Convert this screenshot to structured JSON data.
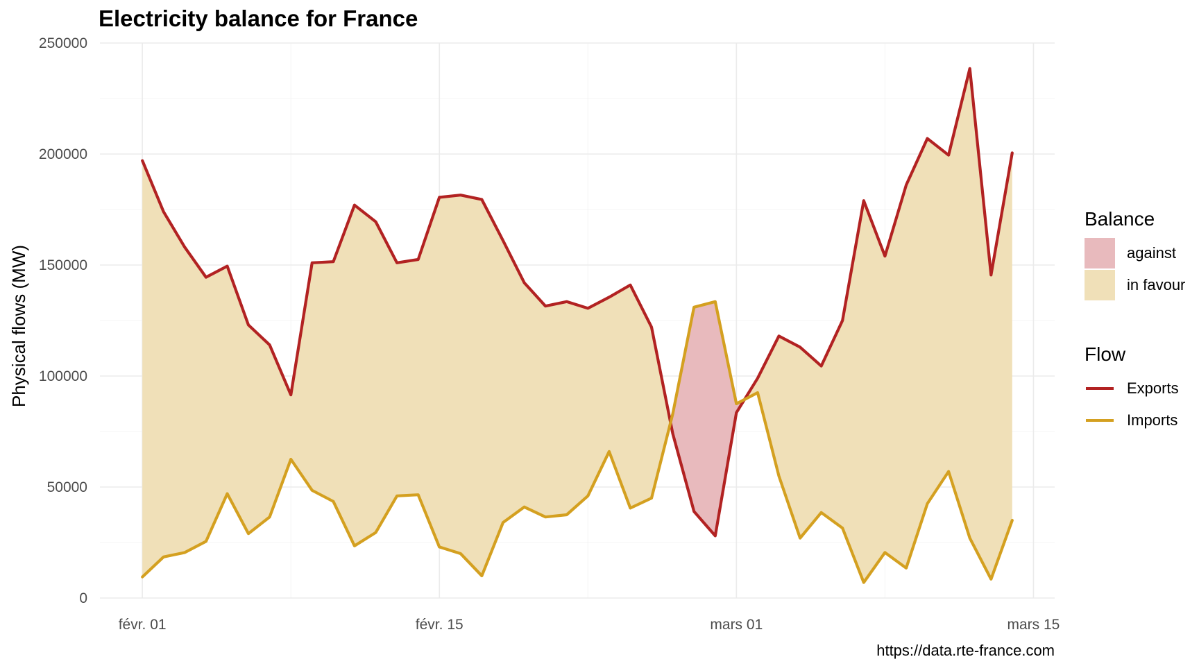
{
  "title": "Electricity balance for France",
  "caption": "https://data.rte-france.com",
  "colors": {
    "exports": "#b22222",
    "imports": "#d4a020",
    "against": "#e8babd",
    "in_favour": "#f0e0b8"
  },
  "chart_data": {
    "type": "area",
    "ylabel": "Physical flows (MW)",
    "xlabel": "",
    "ylim": [
      0,
      250000
    ],
    "y_ticks": [
      0,
      50000,
      100000,
      150000,
      200000,
      250000
    ],
    "y_tick_labels": [
      "0",
      "50000",
      "100000",
      "150000",
      "200000",
      "250000"
    ],
    "x_ticks": [
      "2021-02-01",
      "2021-02-15",
      "2021-03-01",
      "2021-03-15"
    ],
    "x_tick_labels": [
      "févr. 01",
      "févr. 15",
      "mars 01",
      "mars 15"
    ],
    "x": [
      "2021-02-01",
      "2021-02-02",
      "2021-02-03",
      "2021-02-04",
      "2021-02-05",
      "2021-02-06",
      "2021-02-07",
      "2021-02-08",
      "2021-02-09",
      "2021-02-10",
      "2021-02-11",
      "2021-02-12",
      "2021-02-13",
      "2021-02-14",
      "2021-02-15",
      "2021-02-16",
      "2021-02-17",
      "2021-02-18",
      "2021-02-19",
      "2021-02-20",
      "2021-02-21",
      "2021-02-22",
      "2021-02-23",
      "2021-02-24",
      "2021-02-25",
      "2021-02-26",
      "2021-02-27",
      "2021-02-28",
      "2021-03-01",
      "2021-03-02",
      "2021-03-03",
      "2021-03-04",
      "2021-03-05",
      "2021-03-06",
      "2021-03-07",
      "2021-03-08",
      "2021-03-09",
      "2021-03-10",
      "2021-03-11",
      "2021-03-12",
      "2021-03-13",
      "2021-03-14"
    ],
    "series": [
      {
        "name": "Exports",
        "values": [
          197000,
          174000,
          158000,
          144500,
          149500,
          123000,
          114000,
          91500,
          151000,
          151500,
          177000,
          169500,
          151000,
          152500,
          180500,
          181500,
          179500,
          161000,
          142000,
          131500,
          133500,
          130500,
          135500,
          141000,
          122000,
          74000,
          39000,
          28000,
          83500,
          99000,
          118000,
          113000,
          104500,
          125000,
          179000,
          154000,
          186000,
          207000,
          199500,
          238500,
          145500,
          200500
        ]
      },
      {
        "name": "Imports",
        "values": [
          9500,
          18500,
          20500,
          25500,
          47000,
          29000,
          36500,
          62500,
          48500,
          43500,
          23500,
          29500,
          46000,
          46500,
          23000,
          20000,
          10000,
          34000,
          41000,
          36500,
          37500,
          46000,
          66000,
          40500,
          45000,
          83000,
          131000,
          133500,
          87500,
          92500,
          55000,
          27000,
          38500,
          31500,
          7000,
          20500,
          13500,
          42500,
          57000,
          27000,
          8500,
          35000
        ]
      }
    ],
    "legend": {
      "placement": "right",
      "balance_title": "Balance",
      "balance_items": [
        "against",
        "in favour"
      ],
      "flow_title": "Flow",
      "flow_items": [
        "Exports",
        "Imports"
      ]
    },
    "grid": true
  }
}
